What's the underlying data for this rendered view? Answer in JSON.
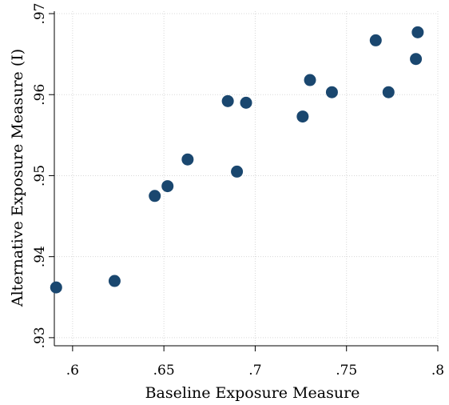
{
  "chart_data": {
    "type": "scatter",
    "title": "",
    "xlabel": "Baseline Exposure Measure",
    "ylabel": "Alternative Exposure Measure (I)",
    "xlim": [
      0.59,
      0.8
    ],
    "ylim": [
      0.929,
      0.9703
    ],
    "xticks": [
      0.6,
      0.65,
      0.7,
      0.75,
      0.8
    ],
    "xtick_labels": [
      ".6",
      ".65",
      ".7",
      ".75",
      ".8"
    ],
    "yticks": [
      0.93,
      0.94,
      0.95,
      0.96,
      0.97
    ],
    "ytick_labels": [
      ".93",
      ".94",
      ".95",
      ".96",
      ".97"
    ],
    "grid": true,
    "colors": {
      "points": "#1a476f",
      "grid": "#d8d8d8",
      "axis": "#000000"
    },
    "points": [
      {
        "x": 0.591,
        "y": 0.9362
      },
      {
        "x": 0.623,
        "y": 0.937
      },
      {
        "x": 0.645,
        "y": 0.9475
      },
      {
        "x": 0.652,
        "y": 0.9487
      },
      {
        "x": 0.663,
        "y": 0.952
      },
      {
        "x": 0.685,
        "y": 0.9592
      },
      {
        "x": 0.69,
        "y": 0.9505
      },
      {
        "x": 0.695,
        "y": 0.959
      },
      {
        "x": 0.726,
        "y": 0.9573
      },
      {
        "x": 0.73,
        "y": 0.9618
      },
      {
        "x": 0.742,
        "y": 0.9603
      },
      {
        "x": 0.766,
        "y": 0.9667
      },
      {
        "x": 0.773,
        "y": 0.9603
      },
      {
        "x": 0.788,
        "y": 0.9644
      },
      {
        "x": 0.789,
        "y": 0.9677
      }
    ]
  }
}
